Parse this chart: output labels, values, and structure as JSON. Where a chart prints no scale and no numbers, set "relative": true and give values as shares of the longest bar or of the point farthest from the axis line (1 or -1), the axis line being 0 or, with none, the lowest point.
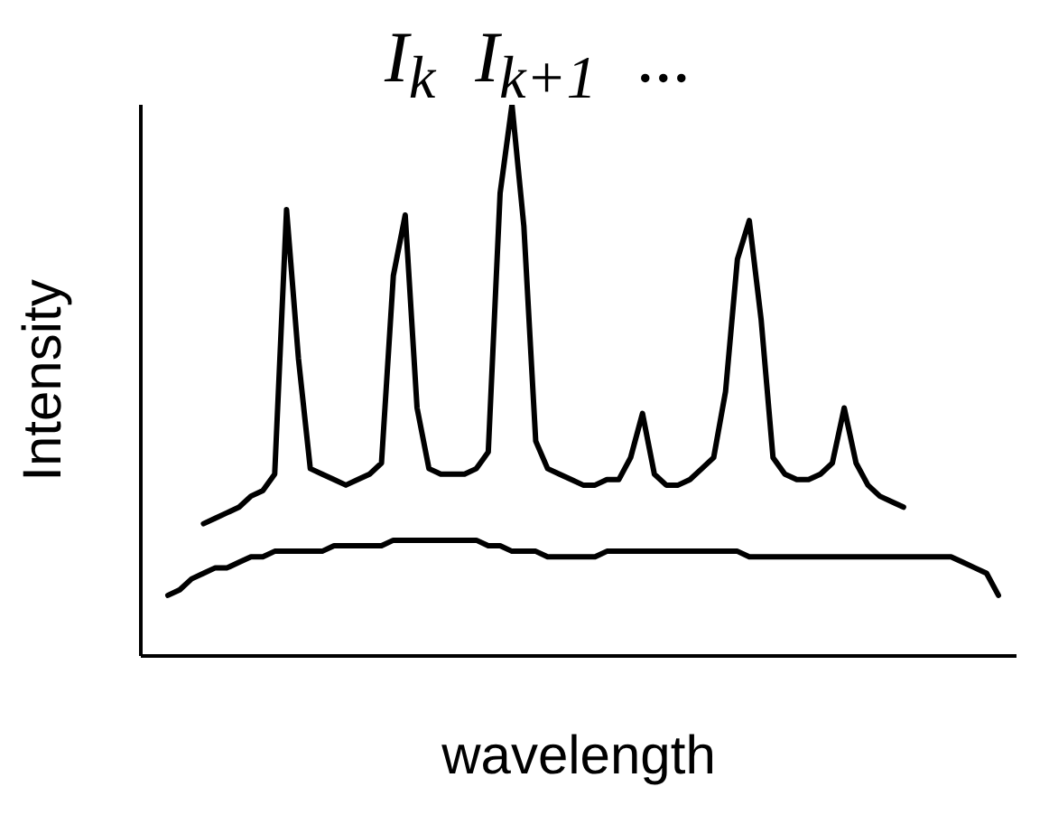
{
  "chart_data": {
    "type": "line",
    "xlabel": "wavelength",
    "ylabel": "Intensity",
    "annotations": [
      "I$_{k}$",
      "I$_{k+1}$",
      "..."
    ],
    "relative": true,
    "tick_labels": false,
    "legend": false,
    "grid": false,
    "categories": [
      null,
      null,
      null,
      null,
      null,
      null,
      null,
      null,
      null,
      null,
      null,
      null,
      null,
      null,
      null,
      null,
      null,
      null,
      null,
      null,
      null,
      null,
      null,
      null,
      null,
      null,
      null,
      null,
      null,
      null,
      null,
      null,
      null,
      null,
      null,
      null,
      null,
      null,
      null,
      null,
      null,
      null,
      null,
      null,
      null,
      null,
      null,
      null,
      null,
      null,
      null,
      null,
      null,
      null,
      null,
      null,
      null,
      null,
      null,
      null,
      null,
      null,
      null,
      null,
      null,
      null,
      null,
      null,
      null,
      null,
      null
    ],
    "series": [
      {
        "color": "#000000",
        "values": [
          null,
          null,
          null,
          0.24,
          0.25,
          0.26,
          0.27,
          0.29,
          0.3,
          0.33,
          0.81,
          0.54,
          0.34,
          0.33,
          0.32,
          0.31,
          0.32,
          0.33,
          0.35,
          0.69,
          0.8,
          0.45,
          0.34,
          0.33,
          0.33,
          0.33,
          0.34,
          0.37,
          0.84,
          1,
          0.78,
          0.39,
          0.34,
          0.33,
          0.32,
          0.31,
          0.31,
          0.32,
          0.32,
          0.36,
          0.44,
          0.33,
          0.31,
          0.31,
          0.32,
          0.34,
          0.36,
          0.48,
          0.72,
          0.79,
          0.61,
          0.36,
          0.33,
          0.32,
          0.32,
          0.33,
          0.35,
          0.45,
          0.35,
          0.31,
          0.29,
          0.28,
          0.27,
          null,
          null,
          null,
          null,
          null,
          null,
          null,
          null
        ]
      },
      {
        "color": "#000000",
        "values": [
          0.11,
          0.12,
          0.14,
          0.15,
          0.16,
          0.16,
          0.17,
          0.18,
          0.18,
          0.19,
          0.19,
          0.19,
          0.19,
          0.19,
          0.2,
          0.2,
          0.2,
          0.2,
          0.2,
          0.21,
          0.21,
          0.21,
          0.21,
          0.21,
          0.21,
          0.21,
          0.21,
          0.2,
          0.2,
          0.19,
          0.19,
          0.19,
          0.18,
          0.18,
          0.18,
          0.18,
          0.18,
          0.19,
          0.19,
          0.19,
          0.19,
          0.19,
          0.19,
          0.19,
          0.19,
          0.19,
          0.19,
          0.19,
          0.19,
          0.18,
          0.18,
          0.18,
          0.18,
          0.18,
          0.18,
          0.18,
          0.18,
          0.18,
          0.18,
          0.18,
          0.18,
          0.18,
          0.18,
          0.18,
          0.18,
          0.18,
          0.18,
          0.17,
          0.16,
          0.15,
          0.11
        ]
      }
    ]
  }
}
